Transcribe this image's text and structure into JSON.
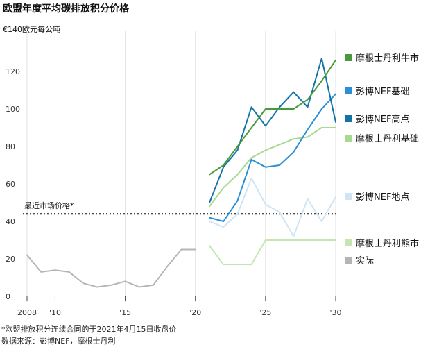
{
  "chart_data": {
    "type": "line",
    "title": "欧盟年度平均碳排放积分价格",
    "ylabel": "€140欧元每公吨",
    "ylim": [
      0,
      140
    ],
    "xlim": [
      2008,
      2030
    ],
    "y_ticks": [
      0,
      20,
      40,
      60,
      80,
      100,
      120
    ],
    "x_ticks": [
      {
        "value": 2008,
        "label": "2008"
      },
      {
        "value": 2010,
        "label": "'10"
      },
      {
        "value": 2015,
        "label": "'15"
      },
      {
        "value": 2020,
        "label": "'20"
      },
      {
        "value": 2025,
        "label": "'25"
      },
      {
        "value": 2030,
        "label": "'30"
      }
    ],
    "grid": "vertical",
    "reference_line": {
      "label": "最近市场价格*",
      "value": 44
    },
    "series": [
      {
        "name": "摩根士丹利牛市",
        "color": "#4a9a3d",
        "x": [
          2021,
          2022,
          2023,
          2024,
          2025,
          2026,
          2027,
          2028,
          2029,
          2030
        ],
        "y": [
          65,
          70,
          80,
          90,
          100,
          100,
          100,
          105,
          115,
          126
        ]
      },
      {
        "name": "彭博NEF基础",
        "color": "#2a8fd6",
        "x": [
          2021,
          2022,
          2023,
          2024,
          2025,
          2026,
          2027,
          2028,
          2029,
          2030
        ],
        "y": [
          42,
          40,
          51,
          73,
          69,
          70,
          77,
          89,
          100,
          108
        ]
      },
      {
        "name": "彭博NEF高点",
        "color": "#1372a8",
        "x": [
          2021,
          2022,
          2023,
          2024,
          2025,
          2026,
          2027,
          2028,
          2029,
          2030
        ],
        "y": [
          50,
          69,
          78,
          101,
          91,
          101,
          109,
          101,
          127,
          93
        ]
      },
      {
        "name": "摩根士丹利基础",
        "color": "#a7d98f",
        "x": [
          2021,
          2022,
          2023,
          2024,
          2025,
          2026,
          2027,
          2028,
          2029,
          2030
        ],
        "y": [
          48,
          58,
          65,
          74,
          78,
          81,
          84,
          85,
          90,
          90
        ]
      },
      {
        "name": "彭博NEF地点",
        "color": "#cfe4f4",
        "x": [
          2021,
          2022,
          2023,
          2024,
          2025,
          2026,
          2027,
          2028,
          2029,
          2030
        ],
        "y": [
          40,
          37,
          44,
          63,
          49,
          45,
          32,
          52,
          40,
          53
        ]
      },
      {
        "name": "摩根士丹利熊市",
        "color": "#c3e6b3",
        "x": [
          2021,
          2022,
          2023,
          2024,
          2025,
          2026,
          2027,
          2028,
          2029,
          2030
        ],
        "y": [
          27,
          17,
          17,
          17,
          30,
          30,
          30,
          30,
          30,
          30
        ]
      },
      {
        "name": "实际",
        "color": "#b5b5b5",
        "x": [
          2008,
          2009,
          2010,
          2011,
          2012,
          2013,
          2014,
          2015,
          2016,
          2017,
          2018,
          2019,
          2020
        ],
        "y": [
          22,
          13,
          14,
          13,
          7,
          5,
          6,
          8,
          5,
          6,
          16,
          25,
          25
        ]
      }
    ],
    "legend": {
      "placement": "right"
    }
  },
  "footnote": "*欧盟排放积分连续合同的于2021年4月15日收盘价",
  "source": "数据来源：彭博NEF，摩根士丹利"
}
